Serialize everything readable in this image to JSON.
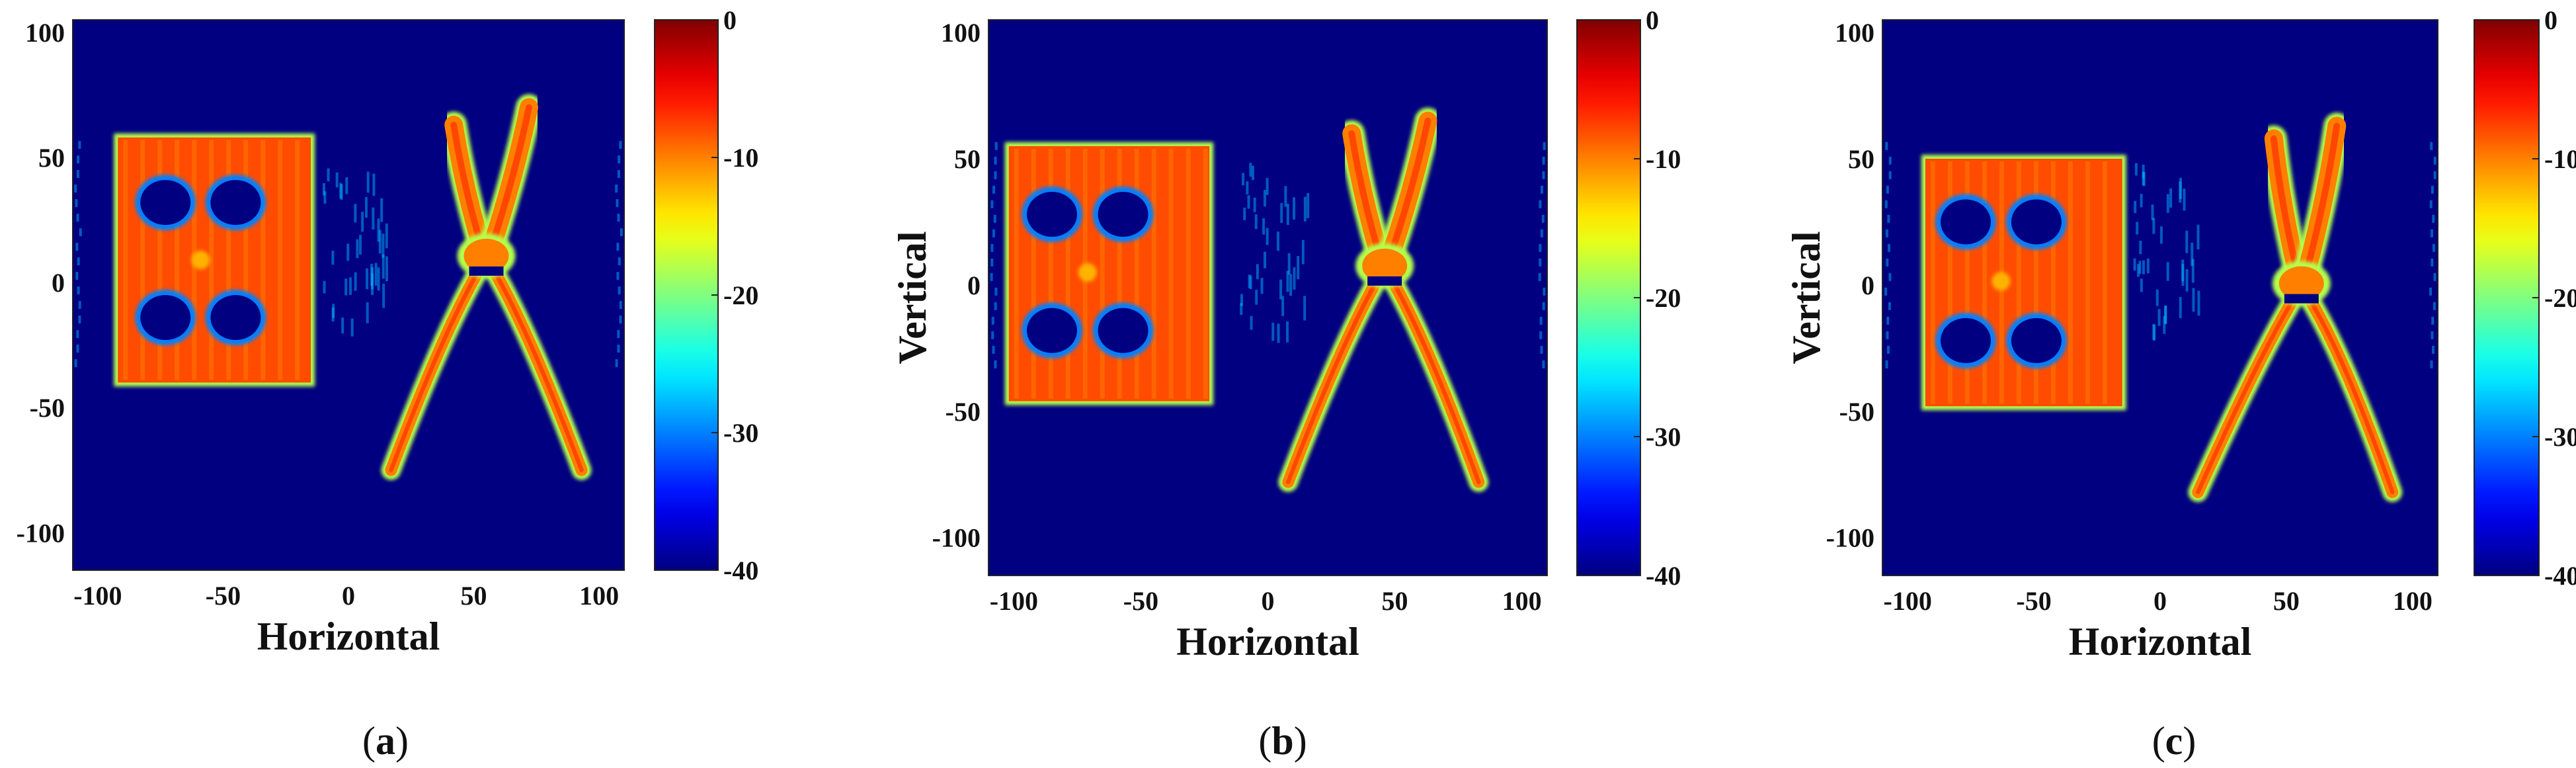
{
  "chart_data": [
    {
      "type": "heatmap",
      "caption": "(a)",
      "caption_letter": "a",
      "xlabel": "Horizontal",
      "ylabel": "",
      "xlim": [
        -110,
        110
      ],
      "ylim": [
        -115,
        105
      ],
      "xticks": [
        "-100",
        "-50",
        "0",
        "50",
        "100"
      ],
      "yticks": [
        "100",
        "50",
        "0",
        "-50",
        "-100"
      ],
      "colorbar": {
        "min": -40,
        "max": 0,
        "ticks": [
          "0",
          "-10",
          "-20",
          "-30",
          "-40"
        ],
        "colormap": "jet"
      },
      "background_value": -40,
      "objects": [
        {
          "kind": "plate",
          "x": [
            -92,
            -15
          ],
          "y": [
            -40,
            58
          ],
          "value": -8,
          "holes": [
            [
              -73,
              32
            ],
            [
              -45,
              32
            ],
            [
              -73,
              -14
            ],
            [
              -45,
              -14
            ]
          ],
          "hole_value": -40
        },
        {
          "kind": "pliers",
          "pivot": [
            55,
            8
          ],
          "jaw_tips": [
            [
              42,
              63
            ],
            [
              72,
              70
            ]
          ],
          "handle_ends": [
            [
              17,
              -75
            ],
            [
              93,
              -75
            ]
          ],
          "value": -10
        }
      ]
    },
    {
      "type": "heatmap",
      "caption": "(b)",
      "caption_letter": "b",
      "xlabel": "Horizontal",
      "ylabel": "Vertical",
      "xlim": [
        -110,
        110
      ],
      "ylim": [
        -115,
        105
      ],
      "xticks": [
        "-100",
        "-50",
        "0",
        "50",
        "100"
      ],
      "yticks": [
        "100",
        "50",
        "0",
        "-50",
        "-100"
      ],
      "colorbar": {
        "min": -40,
        "max": 0,
        "ticks": [
          "0",
          "-10",
          "-20",
          "-30",
          "-40"
        ],
        "colormap": "jet"
      },
      "background_value": -40,
      "objects": [
        {
          "kind": "plate",
          "x": [
            -102,
            -23
          ],
          "y": [
            -46,
            55
          ],
          "value": -8,
          "holes": [
            [
              -85,
              28
            ],
            [
              -57,
              28
            ],
            [
              -85,
              -18
            ],
            [
              -57,
              -18
            ]
          ],
          "hole_value": -40
        },
        {
          "kind": "pliers",
          "pivot": [
            46,
            5
          ],
          "jaw_tips": [
            [
              33,
              60
            ],
            [
              63,
              65
            ]
          ],
          "handle_ends": [
            [
              8,
              -78
            ],
            [
              83,
              -78
            ]
          ],
          "value": -10
        }
      ]
    },
    {
      "type": "heatmap",
      "caption": "(c)",
      "caption_letter": "c",
      "xlabel": "Horizontal",
      "ylabel": "Vertical",
      "xlim": [
        -110,
        110
      ],
      "ylim": [
        -115,
        105
      ],
      "xticks": [
        "-100",
        "-50",
        "0",
        "50",
        "100"
      ],
      "yticks": [
        "100",
        "50",
        "0",
        "-50",
        "-100"
      ],
      "colorbar": {
        "min": -40,
        "max": 0,
        "ticks": [
          "0",
          "-10",
          "-20",
          "-30",
          "-40"
        ],
        "colormap": "jet"
      },
      "background_value": -40,
      "objects": [
        {
          "kind": "plate",
          "x": [
            -93,
            -15
          ],
          "y": [
            -48,
            50
          ],
          "value": -8,
          "holes": [
            [
              -77,
              25
            ],
            [
              -49,
              25
            ],
            [
              -77,
              -22
            ],
            [
              -49,
              -22
            ]
          ],
          "hole_value": -40
        },
        {
          "kind": "pliers",
          "pivot": [
            56,
            -2
          ],
          "jaw_tips": [
            [
              45,
              58
            ],
            [
              70,
              63
            ]
          ],
          "handle_ends": [
            [
              15,
              -82
            ],
            [
              92,
              -82
            ]
          ],
          "value": -10
        }
      ]
    }
  ]
}
